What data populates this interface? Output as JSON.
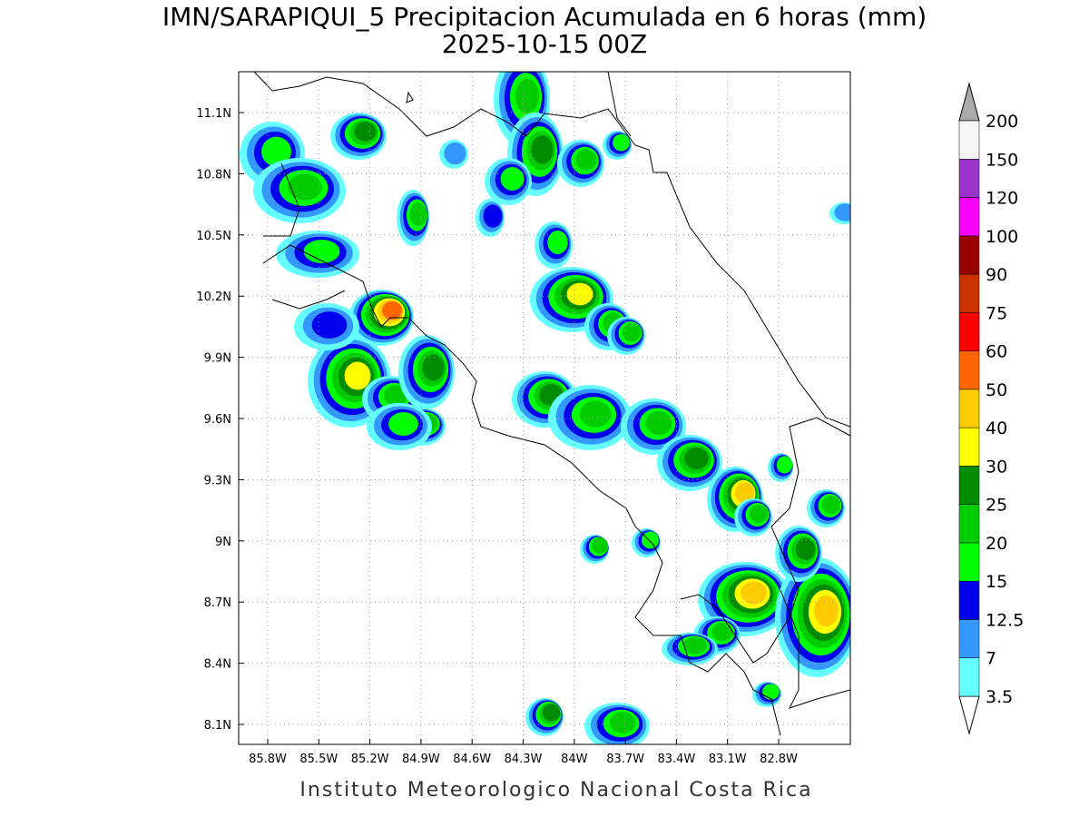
{
  "title": "IMN/SARAPIQUI_5 Precipitacion Acumulada en 6 horas (mm)",
  "subtitle": "2025-10-15 00Z",
  "footer": "Instituto Meteorologico Nacional Costa Rica",
  "map": {
    "x_labels": [
      "85.8W",
      "85.5W",
      "85.2W",
      "84.9W",
      "84.6W",
      "84.3W",
      "84W",
      "83.7W",
      "83.4W",
      "83.1W",
      "82.8W"
    ],
    "y_labels": [
      "11.1N",
      "10.8N",
      "10.5N",
      "10.2N",
      "9.9N",
      "9.6N",
      "9.3N",
      "9N",
      "8.7N",
      "8.4N",
      "8.1N"
    ]
  },
  "legend": {
    "levels": [
      3.5,
      7,
      12.5,
      15,
      20,
      25,
      30,
      40,
      50,
      60,
      75,
      90,
      100,
      120,
      150,
      200
    ],
    "colors": [
      "#66ffff",
      "#3399ff",
      "#0000ee",
      "#00ff00",
      "#00cc00",
      "#008c00",
      "#ffff00",
      "#ffcc00",
      "#ff6600",
      "#ff0000",
      "#cc3300",
      "#990000",
      "#ff00ff",
      "#9933cc",
      "#f5f5f5"
    ],
    "under_color": "#ffffff",
    "over_color": "#aaaaaa"
  }
}
